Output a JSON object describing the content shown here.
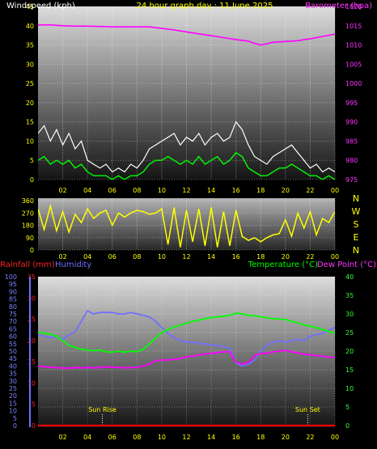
{
  "header": {
    "windspeed_label": "Windspeed (kph)",
    "title": "24 hour graph day : 11 June 2025",
    "barometer_label": "Barometer (hpa)"
  },
  "colors": {
    "wind": "#00ff00",
    "gust": "#ffffff",
    "barometer": "#ff00ff",
    "direction": "#ffff00",
    "rainfall": "#ff0000",
    "humidity": "#7070ff",
    "temperature": "#00ff00",
    "dewpoint": "#ff00ff",
    "title": "#ffff00",
    "tick": "#ffff00"
  },
  "chart_data": [
    {
      "type": "line",
      "panel": "wind-barometer",
      "x_ticks": [
        "02",
        "04",
        "06",
        "08",
        "10",
        "12",
        "14",
        "16",
        "18",
        "20",
        "22",
        "00"
      ],
      "xlim_hours": [
        0,
        24
      ],
      "left_axis": {
        "label": "Windspeed (kph)",
        "ylim": [
          0,
          45
        ],
        "ticks": [
          0,
          5,
          10,
          15,
          20,
          25,
          30,
          35,
          40,
          45
        ]
      },
      "right_axis": {
        "label": "Barometer (hpa)",
        "ylim": [
          975,
          1020
        ],
        "ticks": [
          975,
          980,
          985,
          990,
          995,
          1000,
          1005,
          1010,
          1015,
          1020
        ]
      },
      "series": [
        {
          "name": "Gust",
          "hours": [
            0,
            0.5,
            1,
            1.5,
            2,
            2.5,
            3,
            3.5,
            4,
            4.5,
            5,
            5.5,
            6,
            6.5,
            7,
            7.5,
            8,
            8.5,
            9,
            9.5,
            10,
            10.5,
            11,
            11.5,
            12,
            12.5,
            13,
            13.5,
            14,
            14.5,
            15,
            15.5,
            16,
            16.5,
            17,
            17.5,
            18,
            18.5,
            19,
            19.5,
            20,
            20.5,
            21,
            21.5,
            22,
            22.5,
            23,
            23.5,
            24
          ],
          "values": [
            12,
            14,
            10,
            13,
            9,
            12,
            8,
            10,
            5,
            4,
            3,
            4,
            2,
            3,
            2,
            4,
            3,
            5,
            8,
            9,
            10,
            11,
            12,
            9,
            11,
            10,
            12,
            9,
            11,
            12,
            10,
            11,
            15,
            13,
            9,
            6,
            5,
            4,
            6,
            7,
            8,
            9,
            7,
            5,
            3,
            4,
            2,
            3,
            2
          ]
        },
        {
          "name": "Wind",
          "hours": [
            0,
            0.5,
            1,
            1.5,
            2,
            2.5,
            3,
            3.5,
            4,
            4.5,
            5,
            5.5,
            6,
            6.5,
            7,
            7.5,
            8,
            8.5,
            9,
            9.5,
            10,
            10.5,
            11,
            11.5,
            12,
            12.5,
            13,
            13.5,
            14,
            14.5,
            15,
            15.5,
            16,
            16.5,
            17,
            17.5,
            18,
            18.5,
            19,
            19.5,
            20,
            20.5,
            21,
            21.5,
            22,
            22.5,
            23,
            23.5,
            24
          ],
          "values": [
            5,
            6,
            4,
            5,
            4,
            5,
            3,
            4,
            2,
            1,
            1,
            1,
            0,
            1,
            0,
            1,
            1,
            2,
            4,
            5,
            5,
            6,
            5,
            4,
            5,
            4,
            6,
            4,
            5,
            6,
            4,
            5,
            7,
            6,
            3,
            2,
            1,
            1,
            2,
            3,
            3,
            4,
            3,
            2,
            1,
            1,
            0,
            1,
            0
          ]
        },
        {
          "name": "Barometer",
          "hours": [
            0,
            1,
            2,
            3,
            4,
            5,
            6,
            7,
            8,
            9,
            10,
            11,
            12,
            13,
            14,
            15,
            16,
            17,
            17.5,
            18,
            18.5,
            19,
            20,
            21,
            22,
            23,
            24
          ],
          "values": [
            1015.2,
            1015.2,
            1015.0,
            1014.9,
            1014.9,
            1014.8,
            1014.7,
            1014.7,
            1014.7,
            1014.7,
            1014.3,
            1013.9,
            1013.4,
            1012.9,
            1012.4,
            1011.9,
            1011.4,
            1011.0,
            1010.4,
            1010.0,
            1010.3,
            1010.7,
            1010.9,
            1011.1,
            1011.6,
            1012.2,
            1012.8
          ]
        }
      ]
    },
    {
      "type": "line",
      "panel": "wind-direction",
      "x_ticks": [
        "02",
        "04",
        "06",
        "08",
        "10",
        "12",
        "14",
        "16",
        "18",
        "20",
        "22",
        "00"
      ],
      "xlim_hours": [
        0,
        24
      ],
      "left_axis": {
        "ylim": [
          0,
          360
        ],
        "ticks": [
          0,
          90,
          180,
          270,
          360
        ]
      },
      "right_labels": [
        "N",
        "W",
        "S",
        "E",
        "N"
      ],
      "series": [
        {
          "name": "Direction",
          "hours": [
            0,
            0.5,
            1,
            1.5,
            2,
            2.5,
            3,
            3.5,
            4,
            4.5,
            5,
            5.5,
            6,
            6.5,
            7,
            7.5,
            8,
            8.5,
            9,
            9.5,
            10,
            10.5,
            11,
            11.5,
            12,
            12.5,
            13,
            13.5,
            14,
            14.5,
            15,
            15.5,
            16,
            16.5,
            17,
            17.5,
            18,
            18.5,
            19,
            19.5,
            20,
            20.5,
            21,
            21.5,
            22,
            22.5,
            23,
            23.5,
            24
          ],
          "values": [
            300,
            150,
            320,
            140,
            280,
            130,
            260,
            200,
            300,
            230,
            270,
            290,
            180,
            270,
            240,
            270,
            290,
            280,
            260,
            270,
            300,
            40,
            310,
            20,
            290,
            60,
            300,
            30,
            310,
            20,
            280,
            30,
            290,
            100,
            70,
            90,
            60,
            90,
            110,
            120,
            220,
            100,
            270,
            160,
            280,
            110,
            230,
            200,
            280
          ]
        }
      ]
    },
    {
      "type": "line",
      "panel": "rain-humidity-temperature",
      "x_ticks": [
        "02",
        "04",
        "06",
        "08",
        "10",
        "12",
        "14",
        "16",
        "18",
        "20",
        "22",
        "00"
      ],
      "xlim_hours": [
        0,
        24
      ],
      "labels": {
        "rainfall": "Rainfall (mm)",
        "humidity": "Humidity",
        "temperature": "Temperature (°C)",
        "dewpoint": "Dew Point (°C)"
      },
      "humidity_axis": {
        "ylim": [
          0,
          100
        ],
        "ticks": [
          0,
          5,
          10,
          15,
          20,
          25,
          30,
          35,
          40,
          45,
          50,
          55,
          60,
          65,
          70,
          75,
          80,
          85,
          90,
          95,
          100
        ]
      },
      "rain_axis": {
        "ylim": [
          0,
          35
        ],
        "ticks": [
          0,
          5,
          10,
          15,
          20,
          25,
          30,
          35
        ]
      },
      "temp_axis": {
        "ylim": [
          0,
          40
        ],
        "ticks": [
          0,
          5,
          10,
          15,
          20,
          25,
          30,
          35,
          40
        ]
      },
      "annotations": [
        {
          "label": "Sun Rise",
          "hour": 5.2
        },
        {
          "label": "Sun Set",
          "hour": 21.8
        }
      ],
      "series": [
        {
          "name": "Rainfall",
          "axis": "rain",
          "hours": [
            0,
            24
          ],
          "values": [
            0,
            0
          ]
        },
        {
          "name": "Humidity",
          "axis": "humidity",
          "hours": [
            0,
            0.5,
            1,
            1.5,
            2,
            2.5,
            3,
            3.5,
            4,
            4.5,
            5,
            5.5,
            6,
            6.5,
            7,
            7.5,
            8,
            8.5,
            9,
            9.5,
            10,
            10.5,
            11,
            11.5,
            12,
            12.5,
            13,
            13.5,
            14,
            14.5,
            15,
            15.5,
            16,
            16.5,
            17,
            17.5,
            18,
            18.5,
            19,
            19.5,
            20,
            20.5,
            21,
            21.5,
            22,
            22.5,
            23,
            23.5,
            24
          ],
          "values": [
            61,
            60,
            59,
            60,
            58,
            61,
            63,
            70,
            77,
            75,
            76,
            76,
            76,
            75,
            75,
            76,
            75,
            74,
            73,
            70,
            66,
            62,
            59,
            57,
            56,
            56,
            55,
            55,
            54,
            54,
            53,
            52,
            42,
            40,
            41,
            44,
            50,
            54,
            56,
            57,
            56,
            57,
            58,
            57,
            60,
            61,
            62,
            64,
            66
          ]
        },
        {
          "name": "Temperature",
          "axis": "temp",
          "hours": [
            0,
            0.5,
            1,
            1.5,
            2,
            2.5,
            3,
            3.5,
            4,
            4.5,
            5,
            5.5,
            6,
            6.5,
            7,
            7.5,
            8,
            8.5,
            9,
            9.5,
            10,
            10.5,
            11,
            11.5,
            12,
            12.5,
            13,
            13.5,
            14,
            14.5,
            15,
            15.5,
            16,
            16.5,
            17,
            17.5,
            18,
            18.5,
            19,
            19.5,
            20,
            20.5,
            21,
            21.5,
            22,
            22.5,
            23,
            23.5,
            24
          ],
          "values": [
            25,
            24.8,
            24.5,
            24,
            22.8,
            21.5,
            21,
            20.5,
            20.3,
            20.1,
            20.3,
            19.8,
            19.7,
            20,
            19.7,
            20,
            19.8,
            20.5,
            22,
            23.5,
            25,
            25.8,
            26.5,
            27,
            27.5,
            28,
            28.3,
            28.7,
            29,
            29.2,
            29.4,
            29.6,
            30.2,
            30,
            29.6,
            29.5,
            29.2,
            29,
            28.7,
            28.6,
            28.5,
            28,
            27.6,
            27,
            26.7,
            26.3,
            25.8,
            25.3,
            24.8
          ]
        },
        {
          "name": "Dew Point",
          "axis": "temp",
          "hours": [
            0,
            0.5,
            1,
            1.5,
            2,
            2.5,
            3,
            3.5,
            4,
            4.5,
            5,
            5.5,
            6,
            6.5,
            7,
            7.5,
            8,
            8.5,
            9,
            9.5,
            10,
            10.5,
            11,
            11.5,
            12,
            12.5,
            13,
            13.5,
            14,
            14.5,
            15,
            15.5,
            16,
            16.5,
            17,
            17.5,
            18,
            18.5,
            19,
            19.5,
            20,
            20.5,
            21,
            21.5,
            22,
            22.5,
            23,
            23.5,
            24
          ],
          "values": [
            16,
            15.8,
            15.7,
            15.5,
            15.5,
            15.4,
            15.6,
            15.5,
            15.6,
            15.5,
            15.6,
            15.8,
            15.7,
            15.6,
            15.5,
            15.6,
            15.6,
            16,
            16.5,
            17.4,
            17.6,
            17.6,
            17.8,
            18,
            18.5,
            18.6,
            19,
            19.2,
            19.4,
            19.6,
            19.8,
            19.8,
            17,
            16.5,
            17,
            18.8,
            19.4,
            19.4,
            19.8,
            20,
            20.2,
            19.8,
            19.5,
            19.2,
            19,
            18.8,
            18.6,
            18.4,
            18.3
          ]
        }
      ]
    }
  ]
}
